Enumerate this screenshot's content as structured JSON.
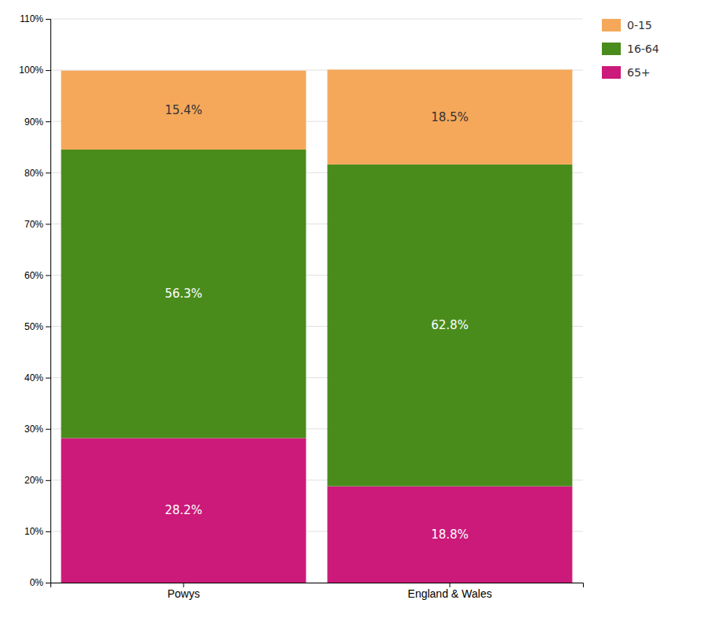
{
  "chart_data": {
    "type": "bar",
    "stacked": true,
    "categories": [
      "Powys",
      "England & Wales"
    ],
    "series": [
      {
        "name": "65+",
        "color": "#cc1a7a",
        "values": [
          28.2,
          18.8
        ],
        "value_labels": [
          "28.2%",
          "18.8%"
        ]
      },
      {
        "name": "16-64",
        "color": "#4a8c1c",
        "values": [
          56.3,
          62.8
        ],
        "value_labels": [
          "56.3%",
          "62.8%"
        ]
      },
      {
        "name": "0-15",
        "color": "#f5a85a",
        "values": [
          15.4,
          18.5
        ],
        "value_labels": [
          "15.4%",
          "18.5%"
        ]
      }
    ],
    "ylim": [
      0,
      110
    ],
    "yticks": [
      {
        "value": 0,
        "label": "0%"
      },
      {
        "value": 10,
        "label": "10%"
      },
      {
        "value": 20,
        "label": "20%"
      },
      {
        "value": 30,
        "label": "30%"
      },
      {
        "value": 40,
        "label": "40%"
      },
      {
        "value": 50,
        "label": "50%"
      },
      {
        "value": 60,
        "label": "60%"
      },
      {
        "value": 70,
        "label": "70%"
      },
      {
        "value": 80,
        "label": "80%"
      },
      {
        "value": 90,
        "label": "90%"
      },
      {
        "value": 100,
        "label": "100%"
      },
      {
        "value": 110,
        "label": "110%"
      }
    ],
    "grid": true,
    "legend": "right",
    "data_labels": true
  }
}
